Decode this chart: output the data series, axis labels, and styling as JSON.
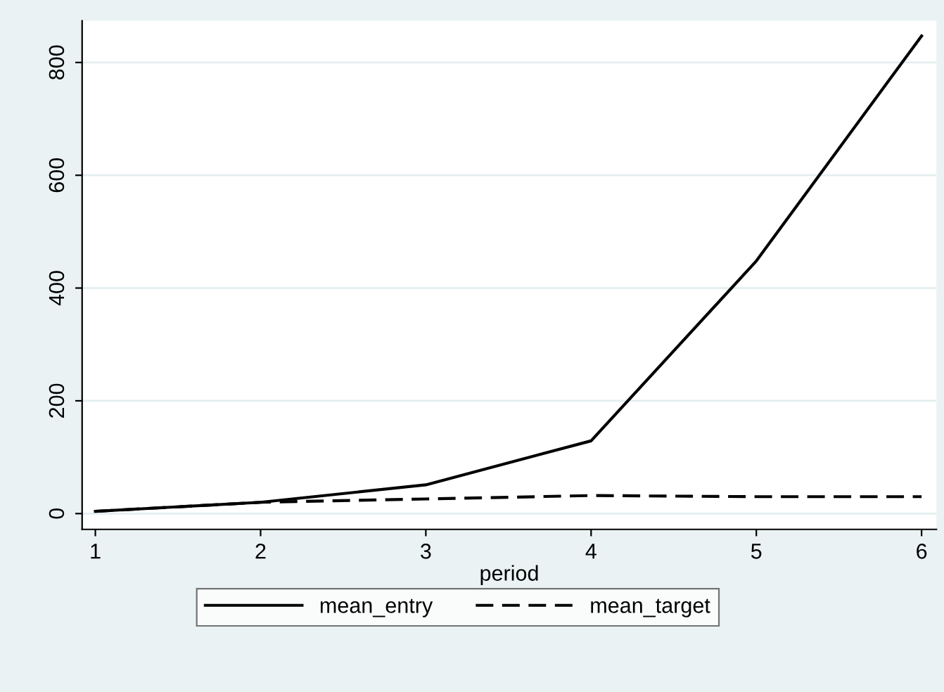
{
  "chart_data": {
    "type": "line",
    "xlabel": "period",
    "x": [
      1,
      2,
      3,
      4,
      5,
      6
    ],
    "series": [
      {
        "name": "mean_entry",
        "color": "#000000",
        "line_style": "solid",
        "values": [
          4,
          20,
          51,
          129,
          448,
          847
        ]
      },
      {
        "name": "mean_target",
        "color": "#000000",
        "line_style": "dashed",
        "values": [
          4,
          20,
          26,
          32,
          30,
          30
        ]
      }
    ],
    "xlim": [
      0.92,
      6.09
    ],
    "xticks": [
      1,
      2,
      3,
      4,
      5,
      6
    ],
    "ylim": [
      -28,
      874
    ],
    "yticks": [
      0,
      200,
      400,
      600,
      800
    ],
    "grid": "y",
    "legend": "bottom",
    "marker": "none"
  }
}
